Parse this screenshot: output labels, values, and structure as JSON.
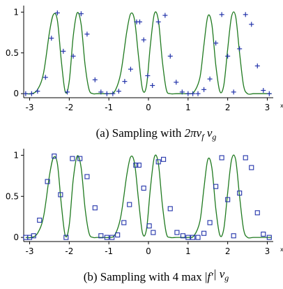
{
  "chart_data": [
    {
      "type": "line",
      "xlabel": "x",
      "xlim": [
        -3.15,
        3.15
      ],
      "ylim": [
        -0.05,
        1.08
      ],
      "xticks": [
        "-3",
        "-2",
        "-1",
        "0",
        "1",
        "2",
        "3"
      ],
      "xtick_values": [
        -3,
        -2,
        -1,
        0,
        1,
        2,
        3
      ],
      "yticks": [
        "0",
        "0.5",
        "1"
      ],
      "ytick_values": [
        0,
        0.5,
        1
      ],
      "caption_prefix": "(a) Sampling with ",
      "caption_math": "2πν",
      "caption_sub1": "f",
      "caption_mid": " ν",
      "caption_sub2": "g",
      "series": [
        {
          "kind": "curve",
          "color": "#1f7a1f",
          "function": "sin^2 oscillation, nonuniform frequency",
          "x": [
            -3.1,
            -2.95,
            -2.8,
            -2.65,
            -2.5,
            -2.4,
            -2.3,
            -2.2,
            -2.1,
            -2.0,
            -1.9,
            -1.8,
            -1.7,
            -1.6,
            -1.5,
            -1.4,
            -1.3,
            -1.15,
            -1.0,
            -0.85,
            -0.7,
            -0.55,
            -0.45,
            -0.35,
            -0.25,
            -0.15,
            -0.05,
            0.05,
            0.15,
            0.25,
            0.35,
            0.45,
            0.55,
            0.7,
            0.85,
            1.0,
            1.15,
            1.3,
            1.4,
            1.5,
            1.6,
            1.7,
            1.8,
            1.9,
            2.0,
            2.1,
            2.2,
            2.3,
            2.4,
            2.5,
            2.65,
            2.8,
            2.95,
            3.1
          ],
          "y": [
            0.0,
            0.0,
            0.05,
            0.25,
            0.75,
            0.97,
            0.9,
            0.4,
            0.02,
            0.15,
            0.7,
            0.99,
            0.85,
            0.35,
            0.05,
            0.0,
            0.0,
            0.0,
            0.0,
            0.03,
            0.25,
            0.75,
            0.98,
            0.9,
            0.45,
            0.05,
            0.1,
            0.6,
            0.98,
            0.9,
            0.4,
            0.05,
            0.0,
            0.0,
            0.0,
            0.0,
            0.02,
            0.2,
            0.6,
            0.95,
            0.85,
            0.35,
            0.03,
            0.1,
            0.55,
            0.95,
            0.95,
            0.5,
            0.1,
            0.0,
            0.0,
            0.0,
            0.0,
            0.0
          ]
        },
        {
          "kind": "samples",
          "marker": "plus",
          "color": "#2233aa",
          "x": [
            -3.1,
            -2.95,
            -2.8,
            -2.6,
            -2.45,
            -2.3,
            -2.15,
            -2.05,
            -1.9,
            -1.7,
            -1.55,
            -1.35,
            -1.2,
            -1.05,
            -0.9,
            -0.75,
            -0.6,
            -0.45,
            -0.3,
            -0.22,
            -0.12,
            -0.02,
            0.1,
            0.25,
            0.42,
            0.55,
            0.7,
            0.85,
            1.0,
            1.12,
            1.25,
            1.4,
            1.55,
            1.7,
            1.85,
            2.0,
            2.15,
            2.3,
            2.45,
            2.6,
            2.75,
            2.9,
            3.05
          ],
          "y": [
            0.0,
            0.0,
            0.03,
            0.2,
            0.68,
            0.99,
            0.52,
            0.02,
            0.46,
            0.98,
            0.73,
            0.17,
            0.02,
            0.0,
            0.0,
            0.03,
            0.15,
            0.3,
            0.88,
            0.88,
            0.66,
            0.22,
            0.1,
            0.88,
            0.96,
            0.46,
            0.14,
            0.02,
            0.0,
            0.0,
            0.0,
            0.05,
            0.18,
            0.62,
            0.97,
            0.46,
            0.02,
            0.55,
            0.97,
            0.85,
            0.34,
            0.04,
            0.0
          ]
        }
      ]
    },
    {
      "type": "line",
      "xlabel": "x",
      "xlim": [
        -3.15,
        3.15
      ],
      "ylim": [
        -0.05,
        1.08
      ],
      "xticks": [
        "-3",
        "-2",
        "-1",
        "0",
        "1",
        "2",
        "3"
      ],
      "xtick_values": [
        -3,
        -2,
        -1,
        0,
        1,
        2,
        3
      ],
      "yticks": [
        "0",
        "0.5",
        "1"
      ],
      "ytick_values": [
        0,
        0.5,
        1
      ],
      "caption_prefix": "(b) Sampling with 4 max |",
      "caption_math": "f′",
      "caption_sub1": "",
      "caption_mid": "| ν",
      "caption_sub2": "g",
      "series": [
        {
          "kind": "curve",
          "color": "#1f7a1f",
          "function": "sin^2 oscillation, nonuniform frequency",
          "x": [
            -3.1,
            -2.95,
            -2.8,
            -2.65,
            -2.5,
            -2.4,
            -2.3,
            -2.2,
            -2.1,
            -2.0,
            -1.9,
            -1.8,
            -1.7,
            -1.6,
            -1.5,
            -1.4,
            -1.3,
            -1.15,
            -1.0,
            -0.85,
            -0.7,
            -0.55,
            -0.45,
            -0.35,
            -0.25,
            -0.15,
            -0.05,
            0.05,
            0.15,
            0.25,
            0.35,
            0.45,
            0.55,
            0.7,
            0.85,
            1.0,
            1.15,
            1.3,
            1.4,
            1.5,
            1.6,
            1.7,
            1.8,
            1.9,
            2.0,
            2.1,
            2.2,
            2.3,
            2.4,
            2.5,
            2.65,
            2.8,
            2.95,
            3.1
          ],
          "y": [
            0.0,
            0.0,
            0.05,
            0.25,
            0.75,
            0.97,
            0.9,
            0.4,
            0.02,
            0.15,
            0.7,
            0.99,
            0.85,
            0.35,
            0.05,
            0.0,
            0.0,
            0.0,
            0.0,
            0.03,
            0.25,
            0.75,
            0.98,
            0.9,
            0.45,
            0.05,
            0.1,
            0.6,
            0.98,
            0.9,
            0.4,
            0.05,
            0.0,
            0.0,
            0.0,
            0.0,
            0.02,
            0.2,
            0.6,
            0.95,
            0.85,
            0.35,
            0.03,
            0.1,
            0.55,
            0.95,
            0.95,
            0.5,
            0.1,
            0.0,
            0.0,
            0.0,
            0.0,
            0.0
          ]
        },
        {
          "kind": "samples",
          "marker": "square",
          "color": "#2233aa",
          "x": [
            -3.1,
            -3.0,
            -2.9,
            -2.75,
            -2.55,
            -2.38,
            -2.22,
            -2.08,
            -1.92,
            -1.73,
            -1.55,
            -1.35,
            -1.2,
            -1.05,
            -0.92,
            -0.78,
            -0.62,
            -0.48,
            -0.32,
            -0.24,
            -0.12,
            0.02,
            0.12,
            0.25,
            0.38,
            0.55,
            0.72,
            0.87,
            1.0,
            1.12,
            1.25,
            1.4,
            1.55,
            1.7,
            1.85,
            2.0,
            2.15,
            2.3,
            2.45,
            2.6,
            2.75,
            2.9,
            3.05
          ],
          "y": [
            0.0,
            0.0,
            0.02,
            0.21,
            0.68,
            0.99,
            0.52,
            0.0,
            0.96,
            0.96,
            0.74,
            0.36,
            0.02,
            0.0,
            0.0,
            0.03,
            0.18,
            0.4,
            0.88,
            0.88,
            0.6,
            0.14,
            0.06,
            0.92,
            0.95,
            0.35,
            0.06,
            0.02,
            0.0,
            0.0,
            0.0,
            0.05,
            0.18,
            0.62,
            0.97,
            0.46,
            0.02,
            0.54,
            0.97,
            0.85,
            0.3,
            0.04,
            0.0
          ]
        }
      ]
    }
  ]
}
